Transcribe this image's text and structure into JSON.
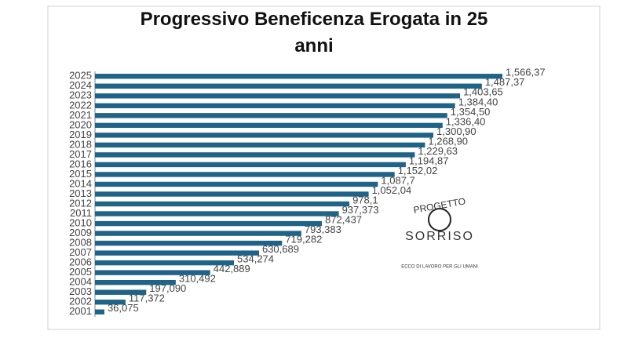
{
  "chart_data": {
    "type": "bar",
    "orientation": "horizontal",
    "title": "Progressivo Beneficenza Erogata in 25 anni",
    "categories": [
      "2001",
      "2002",
      "2003",
      "2004",
      "2005",
      "2006",
      "2007",
      "2008",
      "2009",
      "2010",
      "2011",
      "2012",
      "2013",
      "2014",
      "2015",
      "2016",
      "2017",
      "2018",
      "2019",
      "2020",
      "2021",
      "2022",
      "2023",
      "2024",
      "2025"
    ],
    "values": [
      36075,
      117372,
      197090,
      310492,
      442889,
      534274,
      630689,
      719282,
      793383,
      872437,
      937373,
      978100,
      1052040,
      1087700,
      1152020,
      1194870,
      1229630,
      1268900,
      1300900,
      1336400,
      1354500,
      1384400,
      1403650,
      1487370,
      1566370
    ],
    "value_labels": [
      "36,075",
      "117,372",
      "197,090",
      "310,492",
      "442,889",
      "534,274",
      "630,689",
      "719,282",
      "793,383",
      "872,437",
      "937,373",
      "978,1",
      "1,052,04",
      "1,087,7",
      "1,152,02",
      "1,194,87",
      "1,229,63",
      "1,268,90",
      "1,300,90",
      "1,336,40",
      "1,354,50",
      "1,384,40",
      "1,403,65",
      "1,487,37",
      "1,566,37"
    ],
    "color": "#1f6388",
    "xlim": [
      0,
      1566370
    ],
    "logo": {
      "line1": "PROGETTO",
      "line2": "SORRISO",
      "caption": "ECCO DI LAVORO PER GLI UMANI"
    }
  }
}
